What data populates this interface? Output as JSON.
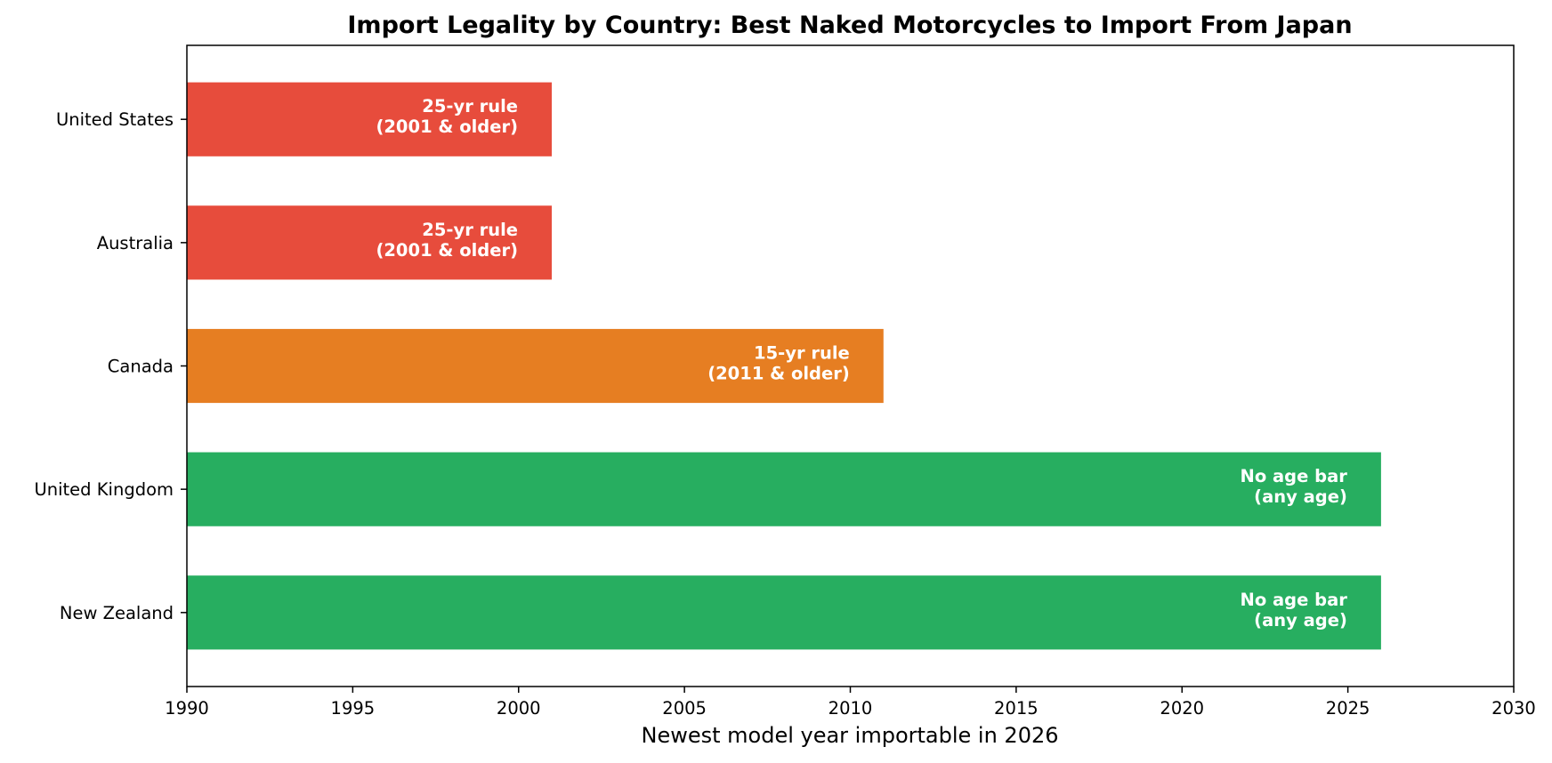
{
  "chart_data": {
    "type": "bar",
    "orientation": "horizontal",
    "title": "Import Legality by Country: Best Naked Motorcycles to Import From Japan",
    "xlabel": "Newest model year importable in 2026",
    "ylabel": "",
    "xlim": [
      1990,
      2030
    ],
    "xticks": [
      1990,
      1995,
      2000,
      2005,
      2010,
      2015,
      2020,
      2025,
      2030
    ],
    "grid": false,
    "categories": [
      "United States",
      "Australia",
      "Canada",
      "United Kingdom",
      "New Zealand"
    ],
    "values": [
      2001,
      2001,
      2011,
      2026,
      2026
    ],
    "colors": [
      "#e74c3c",
      "#e74c3c",
      "#e67e22",
      "#27ae60",
      "#27ae60"
    ],
    "bar_labels": [
      [
        "25-yr rule",
        "(2001 & older)"
      ],
      [
        "25-yr rule",
        "(2001 & older)"
      ],
      [
        "15-yr rule",
        "(2011 & older)"
      ],
      [
        "No age bar",
        "(any age)"
      ],
      [
        "No age bar",
        "(any age)"
      ]
    ]
  }
}
